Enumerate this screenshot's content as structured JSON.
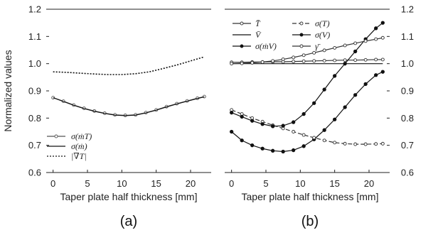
{
  "chart_data": [
    {
      "panel_label": "(a)",
      "type": "line",
      "xlabel": "Taper plate half thickness [mm]",
      "ylabel": "Normalized values",
      "xlim": [
        -1,
        23
      ],
      "ylim": [
        0.6,
        1.2
      ],
      "x_ticks": [
        "0",
        "5",
        "10",
        "15",
        "20"
      ],
      "y_ticks": [
        "0.6",
        "0.7",
        "0.8",
        "0.9",
        "1.0",
        "1.1",
        "1.2"
      ],
      "y_tick_side": "left",
      "grid": false,
      "legend_position": "bottom-left",
      "series": [
        {
          "name": "σ(ṁT)",
          "color": "#555555",
          "style": "line-open-markers",
          "x": [
            0,
            1.5,
            3,
            4.5,
            6,
            7.5,
            9,
            10.5,
            12,
            13.5,
            15,
            16.5,
            18,
            19.5,
            21,
            22
          ],
          "y": [
            0.875,
            0.862,
            0.848,
            0.836,
            0.826,
            0.818,
            0.812,
            0.81,
            0.812,
            0.82,
            0.83,
            0.842,
            0.853,
            0.863,
            0.873,
            0.879
          ]
        },
        {
          "name": "σ(ṁ)",
          "color": "#111111",
          "style": "solid",
          "x": [
            0,
            1.5,
            3,
            4.5,
            6,
            7.5,
            9,
            10.5,
            12,
            13.5,
            15,
            16.5,
            18,
            19.5,
            21,
            22
          ],
          "y": [
            0.875,
            0.861,
            0.847,
            0.835,
            0.825,
            0.817,
            0.811,
            0.809,
            0.811,
            0.819,
            0.829,
            0.841,
            0.852,
            0.862,
            0.872,
            0.878
          ]
        },
        {
          "name": "|∇T|",
          "color": "#111111",
          "style": "dotted",
          "x": [
            0,
            2,
            4,
            6,
            8,
            10,
            12,
            14,
            16,
            18,
            20,
            22
          ],
          "y": [
            0.97,
            0.968,
            0.965,
            0.962,
            0.96,
            0.96,
            0.963,
            0.97,
            0.982,
            0.995,
            1.01,
            1.025
          ]
        }
      ],
      "legend": [
        "σ(ṁT)",
        "σ(ṁ)",
        "|∇T|"
      ]
    },
    {
      "panel_label": "(b)",
      "type": "line",
      "xlabel": "Taper plate half thickness [mm]",
      "ylabel": "",
      "xlim": [
        -1,
        23
      ],
      "ylim": [
        0.6,
        1.2
      ],
      "x_ticks": [
        "0",
        "5",
        "10",
        "15",
        "20"
      ],
      "y_ticks": [
        "0.6",
        "0.7",
        "0.8",
        "0.9",
        "1.0",
        "1.1",
        "1.2"
      ],
      "y_tick_side": "right",
      "grid": false,
      "legend_position": "top-left",
      "series": [
        {
          "name": "T̄",
          "color": "#333333",
          "style": "line-open-markers",
          "x": [
            0,
            1.5,
            3,
            4.5,
            6,
            7.5,
            9,
            10.5,
            12,
            13.5,
            15,
            16.5,
            18,
            19.5,
            21,
            22
          ],
          "y": [
            1.005,
            1.005,
            1.006,
            1.006,
            1.007,
            1.007,
            1.008,
            1.009,
            1.01,
            1.011,
            1.012,
            1.013,
            1.013,
            1.014,
            1.015,
            1.015
          ]
        },
        {
          "name": "V̄",
          "color": "#111111",
          "style": "solid",
          "x": [
            0,
            2,
            4,
            6,
            8,
            10,
            12,
            14,
            16,
            18,
            20,
            22
          ],
          "y": [
            1.0,
            1.0,
            1.0,
            1.0,
            1.0,
            1.0,
            1.0,
            1.0,
            1.0,
            1.0,
            1.0,
            1.0
          ]
        },
        {
          "name": "σ(ṁV)",
          "color": "#111111",
          "style": "line-filled-markers",
          "x": [
            0,
            1.5,
            3,
            4.5,
            6,
            7.5,
            9,
            10.5,
            12,
            13.5,
            15,
            16.5,
            18,
            19.5,
            21,
            22
          ],
          "y": [
            0.75,
            0.718,
            0.7,
            0.688,
            0.68,
            0.677,
            0.682,
            0.697,
            0.722,
            0.756,
            0.795,
            0.84,
            0.885,
            0.925,
            0.958,
            0.97
          ]
        },
        {
          "name": "σ(T)",
          "color": "#333333",
          "style": "dashed-open-markers",
          "x": [
            0,
            1.5,
            3,
            4.5,
            6,
            7.5,
            9,
            10.5,
            12,
            13.5,
            15,
            16.5,
            18,
            19.5,
            21,
            22
          ],
          "y": [
            0.83,
            0.815,
            0.8,
            0.787,
            0.774,
            0.762,
            0.75,
            0.738,
            0.728,
            0.718,
            0.71,
            0.706,
            0.704,
            0.704,
            0.705,
            0.706
          ]
        },
        {
          "name": "σ(V)",
          "color": "#111111",
          "style": "line-filled-markers",
          "x": [
            0,
            1.5,
            3,
            4.5,
            6,
            7.5,
            9,
            10.5,
            12,
            13.5,
            15,
            16.5,
            18,
            19.5,
            21,
            22
          ],
          "y": [
            0.82,
            0.805,
            0.79,
            0.778,
            0.77,
            0.772,
            0.785,
            0.815,
            0.855,
            0.905,
            0.955,
            1.0,
            1.045,
            1.09,
            1.13,
            1.15
          ]
        },
        {
          "name": "γ̄",
          "color": "#333333",
          "style": "line-open-markers",
          "x": [
            0,
            1.5,
            3,
            4.5,
            6,
            7.5,
            9,
            10.5,
            12,
            13.5,
            15,
            16.5,
            18,
            19.5,
            21,
            22
          ],
          "y": [
            1.0,
            1.001,
            1.003,
            1.006,
            1.01,
            1.016,
            1.023,
            1.031,
            1.04,
            1.049,
            1.058,
            1.067,
            1.075,
            1.083,
            1.09,
            1.095
          ]
        }
      ],
      "legend": [
        "T̄",
        "σ(T)",
        "V̄",
        "σ(V)",
        "σ(ṁV)",
        "γ̄"
      ]
    }
  ]
}
